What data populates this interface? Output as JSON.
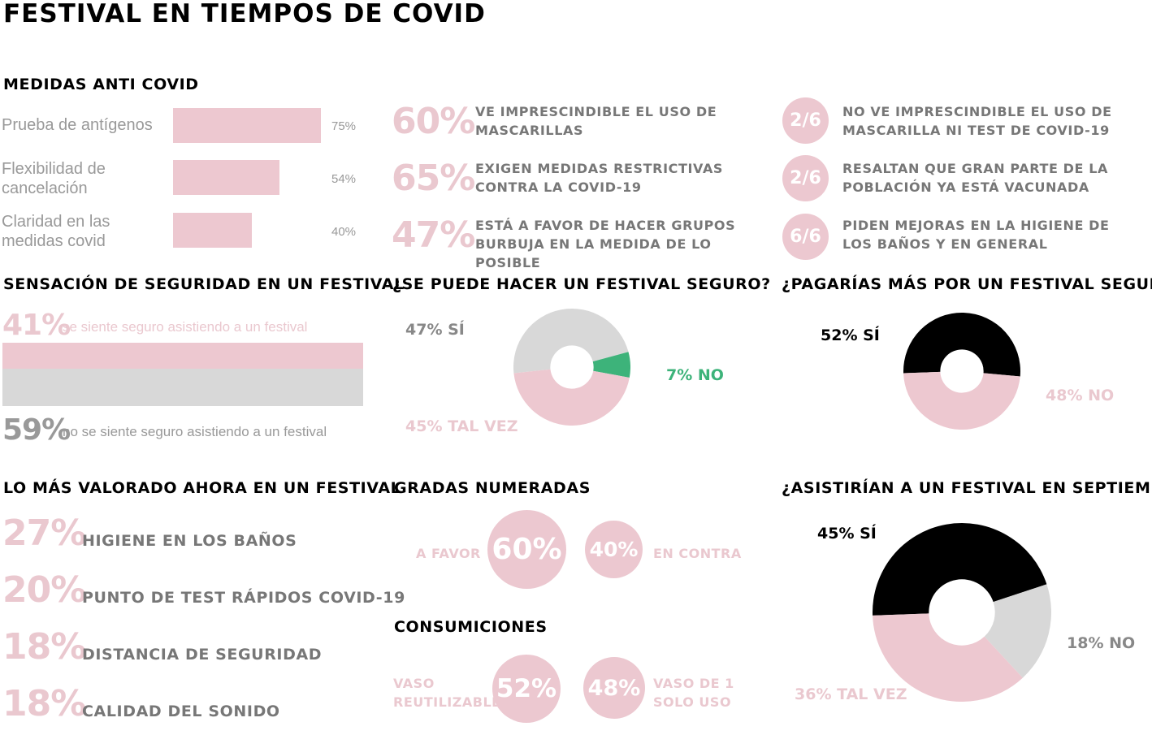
{
  "title": "FESTIVAL EN TIEMPOS DE COVID",
  "colors": {
    "pink": "#edc8d0",
    "gray": "#d8d8d8",
    "green": "#3db37a",
    "black": "#000000"
  },
  "medidas": {
    "heading": "MEDIDAS ANTI COVID",
    "chart_data": {
      "type": "bar",
      "categories": [
        "Prueba de antígenos",
        "Flexibilidad de cancelación",
        "Claridad en las medidas covid"
      ],
      "values": [
        75,
        54,
        40
      ],
      "value_labels": [
        "75%",
        "54%",
        "40%"
      ]
    }
  },
  "stats_mid": [
    {
      "pct": "60%",
      "text": "VE IMPRESCINDIBLE EL USO DE MASCARILLAS"
    },
    {
      "pct": "65%",
      "text": "EXIGEN MEDIDAS RESTRICTIVAS CONTRA LA COVID-19"
    },
    {
      "pct": "47%",
      "text": "ESTÁ A FAVOR DE HACER GRUPOS BURBUJA EN LA MEDIDA DE LO POSIBLE"
    }
  ],
  "stats_right": [
    {
      "frac": "2/6",
      "text": "NO VE IMPRESCINDIBLE EL USO DE MASCARILLA NI TEST DE COVID-19"
    },
    {
      "frac": "2/6",
      "text": "RESALTAN QUE GRAN PARTE DE LA POBLACIÓN YA ESTÁ VACUNADA"
    },
    {
      "frac": "6/6",
      "text": "PIDEN MEJORAS EN LA HIGIENE DE LOS BAÑOS Y EN GENERAL"
    }
  ],
  "seguridad": {
    "heading": "SENSACIÓN DE SEGURIDAD EN UN FESTIVAL",
    "chart_data": {
      "type": "bar",
      "stacked": true,
      "values": [
        41,
        59
      ]
    },
    "top_pct": "41%",
    "top_text": "se siente seguro asistiendo a un festival",
    "bottom_pct": "59%",
    "bottom_text": "no se siente seguro asistiendo a un festival"
  },
  "seguro": {
    "heading": "¿SE PUEDE HACER UN FESTIVAL SEGURO?",
    "chart_data": {
      "type": "pie",
      "categories": [
        "SÍ",
        "NO",
        "TAL VEZ"
      ],
      "values": [
        47,
        7,
        45
      ]
    },
    "labels": [
      "47% SÍ",
      "7% NO",
      "45% TAL VEZ"
    ]
  },
  "pagarias": {
    "heading": "¿PAGARÍAS MÁS POR UN FESTIVAL SEGURO?",
    "chart_data": {
      "type": "pie",
      "categories": [
        "SÍ",
        "NO"
      ],
      "values": [
        52,
        48
      ]
    },
    "labels": [
      "52% SÍ",
      "48% NO"
    ]
  },
  "valorado": {
    "heading": "LO MÁS VALORADO AHORA EN UN FESTIVAL",
    "items": [
      {
        "pct": "27%",
        "text": "HIGIENE EN LOS BAÑOS"
      },
      {
        "pct": "20%",
        "text": "PUNTO DE TEST RÁPIDOS COVID-19"
      },
      {
        "pct": "18%",
        "text": "DISTANCIA DE SEGURIDAD"
      },
      {
        "pct": "18%",
        "text": "CALIDAD DEL SONIDO"
      }
    ]
  },
  "gradas": {
    "heading": "GRADAS NUMERADAS",
    "left_label": "A FAVOR",
    "left_pct": "60%",
    "right_pct": "40%",
    "right_label": "EN CONTRA"
  },
  "consumiciones": {
    "heading": "CONSUMICIONES",
    "left_label": "VASO REUTILIZABLE",
    "left_pct": "52%",
    "right_pct": "48%",
    "right_label": "VASO DE 1 SOLO USO"
  },
  "septiembre": {
    "heading": "¿ASISTIRÍAN A UN FESTIVAL EN SEPTIEMBRE?",
    "chart_data": {
      "type": "pie",
      "categories": [
        "SÍ",
        "NO",
        "TAL VEZ"
      ],
      "values": [
        45,
        18,
        36
      ]
    },
    "labels": [
      "45% SÍ",
      "18% NO",
      "36% TAL VEZ"
    ]
  }
}
